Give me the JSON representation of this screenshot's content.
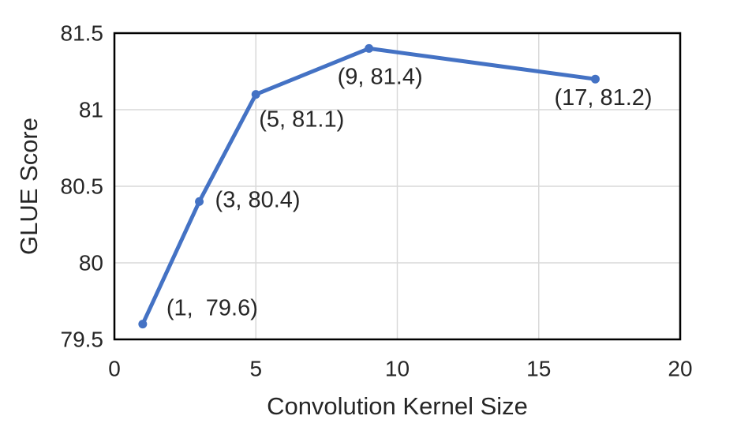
{
  "chart_data": {
    "type": "line",
    "title": "",
    "xlabel": "Convolution Kernel Size",
    "ylabel": "GLUE Score",
    "xlim": [
      0,
      20
    ],
    "ylim": [
      79.5,
      81.5
    ],
    "xticks": [
      0,
      5,
      10,
      15,
      20
    ],
    "yticks": [
      79.5,
      80,
      80.5,
      81,
      81.5
    ],
    "grid": {
      "horizontal_at": [
        80,
        80.5,
        81
      ],
      "vertical_at": [
        5,
        10,
        15
      ],
      "visible": true
    },
    "legend": "none",
    "series": [
      {
        "name": "GLUE Score",
        "color": "#4472C4",
        "line_width": 5,
        "marker": "circle",
        "marker_radius": 5.5,
        "points": [
          {
            "x": 1,
            "y": 79.6,
            "label": "(1,  79.6)",
            "label_dx": 30,
            "label_dy": -20
          },
          {
            "x": 3,
            "y": 80.4,
            "label": "(3, 80.4)",
            "label_dx": 20,
            "label_dy": -2
          },
          {
            "x": 5,
            "y": 81.1,
            "label": "(5, 81.1)",
            "label_dx": 4,
            "label_dy": 32
          },
          {
            "x": 9,
            "y": 81.4,
            "label": "(9, 81.4)",
            "label_dx": -40,
            "label_dy": 36
          },
          {
            "x": 17,
            "y": 81.2,
            "label": "(17, 81.2)",
            "label_dx": -52,
            "label_dy": 24
          }
        ]
      }
    ],
    "colors": {
      "line": "#4472C4",
      "axis_border": "#000000",
      "gridline": "#D9D9D9",
      "text": "#262626",
      "background": "#FFFFFF"
    },
    "font_sizes": {
      "tick_label": 28,
      "data_label": 29,
      "axis_title": 31
    }
  }
}
